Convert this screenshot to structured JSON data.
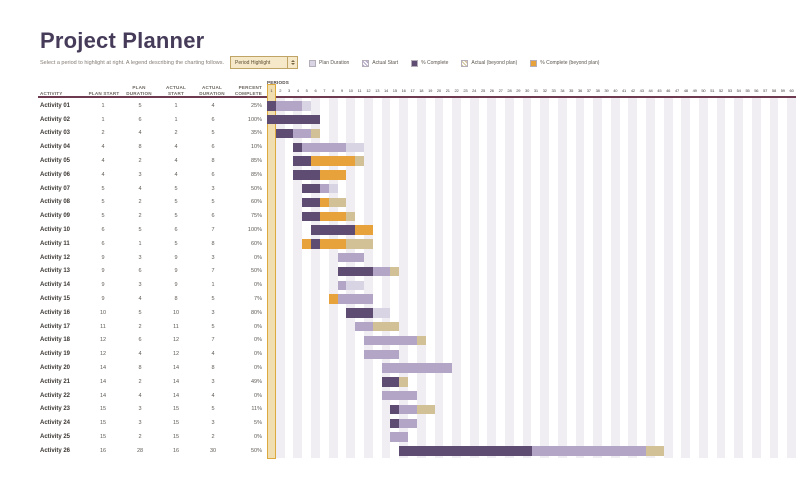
{
  "title": "Project Planner",
  "subtitle": "Select a period to highlight at right. A legend describing the charting follows.",
  "controls": {
    "period_highlight_label": "Period Highlight"
  },
  "legend": [
    {
      "label": "Plan Duration",
      "style": "plan"
    },
    {
      "label": "Actual Start",
      "style": "actual-hatch"
    },
    {
      "label": "% Complete",
      "style": "complete"
    },
    {
      "label": "Actual (beyond plan)",
      "style": "beyond-hatch"
    },
    {
      "label": "% Complete (beyond plan)",
      "style": "complete-beyond"
    }
  ],
  "table": {
    "headers": [
      "ACTIVITY",
      "PLAN START",
      "PLAN DURATION",
      "ACTUAL START",
      "ACTUAL DURATION",
      "PERCENT COMPLETE",
      "PERIODS"
    ]
  },
  "chart_data": {
    "type": "gantt",
    "periods": 60,
    "highlight_period": 1,
    "colors": {
      "complete": "#5e4c72",
      "actual": "#b2a5c6",
      "plan": "#d9d4e3",
      "complete_beyond": "#e8a23c",
      "actual_beyond": "#d2c196",
      "stripe": "#f0eef3",
      "highlight_fill": "#f0ddb0",
      "highlight_border": "#dca93f"
    },
    "activities": [
      {
        "name": "Activity 01",
        "plan_start": 1,
        "plan_duration": 5,
        "actual_start": 1,
        "actual_duration": 4,
        "percent_complete": 25
      },
      {
        "name": "Activity 02",
        "plan_start": 1,
        "plan_duration": 6,
        "actual_start": 1,
        "actual_duration": 6,
        "percent_complete": 100
      },
      {
        "name": "Activity 03",
        "plan_start": 2,
        "plan_duration": 4,
        "actual_start": 2,
        "actual_duration": 5,
        "percent_complete": 35
      },
      {
        "name": "Activity 04",
        "plan_start": 4,
        "plan_duration": 8,
        "actual_start": 4,
        "actual_duration": 6,
        "percent_complete": 10
      },
      {
        "name": "Activity 05",
        "plan_start": 4,
        "plan_duration": 2,
        "actual_start": 4,
        "actual_duration": 8,
        "percent_complete": 85
      },
      {
        "name": "Activity 06",
        "plan_start": 4,
        "plan_duration": 3,
        "actual_start": 4,
        "actual_duration": 6,
        "percent_complete": 85
      },
      {
        "name": "Activity 07",
        "plan_start": 5,
        "plan_duration": 4,
        "actual_start": 5,
        "actual_duration": 3,
        "percent_complete": 50
      },
      {
        "name": "Activity 08",
        "plan_start": 5,
        "plan_duration": 2,
        "actual_start": 5,
        "actual_duration": 5,
        "percent_complete": 60
      },
      {
        "name": "Activity 09",
        "plan_start": 5,
        "plan_duration": 2,
        "actual_start": 5,
        "actual_duration": 6,
        "percent_complete": 75
      },
      {
        "name": "Activity 10",
        "plan_start": 6,
        "plan_duration": 5,
        "actual_start": 6,
        "actual_duration": 7,
        "percent_complete": 100
      },
      {
        "name": "Activity 11",
        "plan_start": 6,
        "plan_duration": 1,
        "actual_start": 5,
        "actual_duration": 8,
        "percent_complete": 60
      },
      {
        "name": "Activity 12",
        "plan_start": 9,
        "plan_duration": 3,
        "actual_start": 9,
        "actual_duration": 3,
        "percent_complete": 0
      },
      {
        "name": "Activity 13",
        "plan_start": 9,
        "plan_duration": 6,
        "actual_start": 9,
        "actual_duration": 7,
        "percent_complete": 50
      },
      {
        "name": "Activity 14",
        "plan_start": 9,
        "plan_duration": 3,
        "actual_start": 9,
        "actual_duration": 1,
        "percent_complete": 0
      },
      {
        "name": "Activity 15",
        "plan_start": 9,
        "plan_duration": 4,
        "actual_start": 8,
        "actual_duration": 5,
        "percent_complete": 7
      },
      {
        "name": "Activity 16",
        "plan_start": 10,
        "plan_duration": 5,
        "actual_start": 10,
        "actual_duration": 3,
        "percent_complete": 80
      },
      {
        "name": "Activity 17",
        "plan_start": 11,
        "plan_duration": 2,
        "actual_start": 11,
        "actual_duration": 5,
        "percent_complete": 0
      },
      {
        "name": "Activity 18",
        "plan_start": 12,
        "plan_duration": 6,
        "actual_start": 12,
        "actual_duration": 7,
        "percent_complete": 0
      },
      {
        "name": "Activity 19",
        "plan_start": 12,
        "plan_duration": 4,
        "actual_start": 12,
        "actual_duration": 4,
        "percent_complete": 0
      },
      {
        "name": "Activity 20",
        "plan_start": 14,
        "plan_duration": 8,
        "actual_start": 14,
        "actual_duration": 8,
        "percent_complete": 0
      },
      {
        "name": "Activity 21",
        "plan_start": 14,
        "plan_duration": 2,
        "actual_start": 14,
        "actual_duration": 3,
        "percent_complete": 49
      },
      {
        "name": "Activity 22",
        "plan_start": 14,
        "plan_duration": 4,
        "actual_start": 14,
        "actual_duration": 4,
        "percent_complete": 0
      },
      {
        "name": "Activity 23",
        "plan_start": 15,
        "plan_duration": 3,
        "actual_start": 15,
        "actual_duration": 5,
        "percent_complete": 11
      },
      {
        "name": "Activity 24",
        "plan_start": 15,
        "plan_duration": 3,
        "actual_start": 15,
        "actual_duration": 3,
        "percent_complete": 5
      },
      {
        "name": "Activity 25",
        "plan_start": 15,
        "plan_duration": 2,
        "actual_start": 15,
        "actual_duration": 2,
        "percent_complete": 0
      },
      {
        "name": "Activity 26",
        "plan_start": 16,
        "plan_duration": 28,
        "actual_start": 16,
        "actual_duration": 30,
        "percent_complete": 50
      }
    ]
  }
}
